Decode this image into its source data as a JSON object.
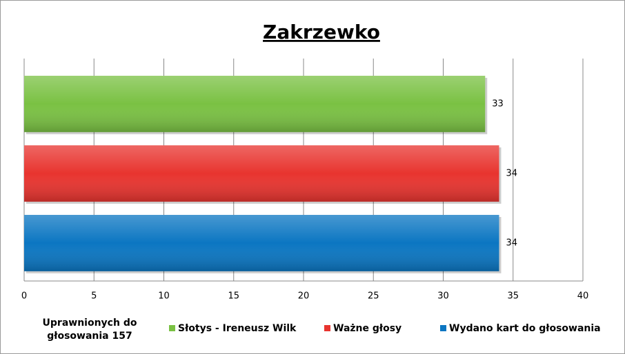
{
  "chart_data": {
    "type": "bar",
    "orientation": "horizontal",
    "title": "Zakrzewko",
    "annotation": "Uprawnionych do głosowania 157",
    "series": [
      {
        "name": "Słotys - Ireneusz Wilk",
        "color": "#7ac143",
        "values": [
          33
        ]
      },
      {
        "name": "Ważne głosy",
        "color": "#e8342f",
        "values": [
          34
        ]
      },
      {
        "name": "Wydano kart do głosowania",
        "color": "#0b76c2",
        "values": [
          34
        ]
      }
    ],
    "xlim": [
      0,
      40
    ],
    "xticks": [
      0,
      5,
      10,
      15,
      20,
      25,
      30,
      35,
      40
    ],
    "grid": true,
    "legend": "bottom"
  }
}
